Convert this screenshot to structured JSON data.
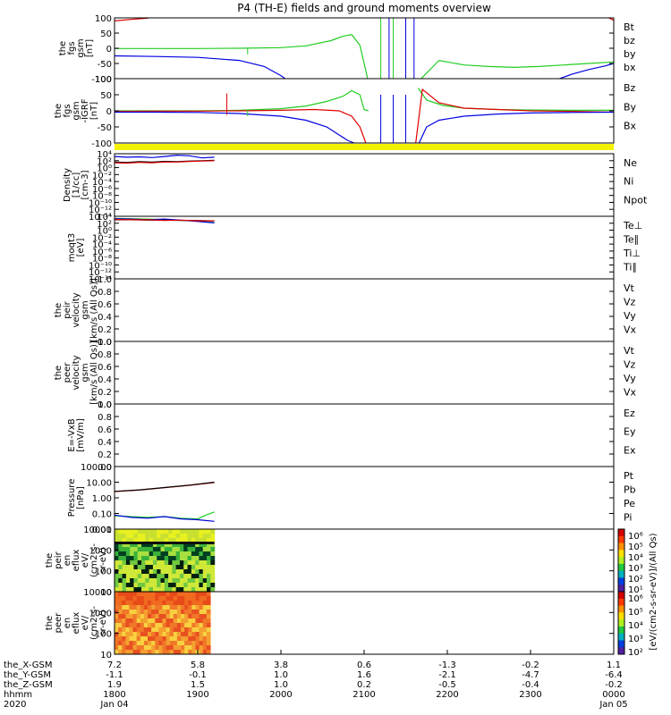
{
  "title": "P4 (TH-E) fields and ground moments overview",
  "colors": {
    "black": "#000000",
    "red": "#e00000",
    "green": "#22cc22",
    "blue": "#0000e0",
    "yellow": "#f2f200"
  },
  "chart_data": [
    {
      "type": "line",
      "id": "fgs-gsm",
      "ylabel": [
        "the",
        "fgs",
        "gsm",
        "[nT]"
      ],
      "ylim": [
        -100,
        100
      ],
      "yticks": [
        "100",
        "50",
        "0",
        "-50",
        "-100"
      ],
      "legend": [
        {
          "name": "Bt",
          "color": "black"
        },
        {
          "name": "bz",
          "color": "red"
        },
        {
          "name": "by",
          "color": "green"
        },
        {
          "name": "bx",
          "color": "blue"
        }
      ],
      "series": [
        {
          "name": "bz",
          "color": "red",
          "x": [
            18.0,
            18.2,
            18.4,
            18.55,
            23.8,
            23.95,
            24.0
          ],
          "y": [
            90,
            95,
            99,
            110,
            110,
            99,
            92
          ]
        },
        {
          "name": "by",
          "color": "green",
          "x": [
            18.0,
            18.5,
            19.0,
            19.5,
            20.0,
            20.3,
            20.6,
            20.75,
            20.85,
            20.95,
            21.05
          ],
          "y": [
            -1,
            -1,
            -1,
            0,
            2,
            8,
            25,
            40,
            45,
            10,
            -110
          ]
        },
        {
          "name": "by-2",
          "color": "green",
          "x": [
            21.65,
            21.9,
            22.2,
            22.5,
            22.8,
            23.1,
            23.4,
            23.7,
            24.0
          ],
          "y": [
            -110,
            -40,
            -55,
            -60,
            -63,
            -60,
            -55,
            -50,
            -45
          ]
        },
        {
          "name": "bx",
          "color": "blue",
          "x": [
            18.0,
            18.5,
            19.0,
            19.5,
            19.8,
            20.0,
            20.05
          ],
          "y": [
            -25,
            -27,
            -30,
            -40,
            -60,
            -90,
            -100
          ]
        },
        {
          "name": "bx-2",
          "color": "blue",
          "x": [
            23.35,
            23.5,
            23.7,
            23.9,
            24.0
          ],
          "y": [
            -100,
            -85,
            -70,
            -58,
            -50
          ]
        }
      ],
      "spikes": [
        {
          "color": "green",
          "x": 19.6,
          "y": [
            -20,
            2
          ]
        },
        {
          "color": "green",
          "x": 21.2,
          "y": [
            -100,
            100
          ]
        },
        {
          "color": "green",
          "x": 21.35,
          "y": [
            -100,
            100
          ]
        },
        {
          "color": "blue",
          "x": 21.3,
          "y": [
            -100,
            100
          ]
        },
        {
          "color": "blue",
          "x": 21.5,
          "y": [
            -100,
            100
          ]
        },
        {
          "color": "blue",
          "x": 21.6,
          "y": [
            -100,
            100
          ]
        }
      ]
    },
    {
      "type": "line",
      "id": "fgs-gsm-dip",
      "ylabel": [
        "the",
        "fgs",
        "gsm",
        "-IGRF",
        "[nT]"
      ],
      "ylim": [
        -120,
        120
      ],
      "yticks": [
        "100",
        "50",
        "0",
        "-50",
        "-100"
      ],
      "legend": [
        {
          "name": "Bz",
          "color": "red"
        },
        {
          "name": "By",
          "color": "green"
        },
        {
          "name": "Bx",
          "color": "blue"
        }
      ],
      "series": [
        {
          "name": "By",
          "color": "green",
          "x": [
            18.0,
            18.5,
            19.0,
            19.5,
            20.0,
            20.3,
            20.55,
            20.75,
            20.85,
            20.95,
            21.0,
            21.05
          ],
          "y": [
            0,
            0,
            0,
            2,
            8,
            18,
            35,
            55,
            75,
            60,
            5,
            0
          ]
        },
        {
          "name": "By-2",
          "color": "green",
          "x": [
            21.65,
            21.75,
            21.95,
            22.2,
            22.6,
            23.0,
            23.5,
            24.0
          ],
          "y": [
            85,
            40,
            20,
            10,
            5,
            3,
            2,
            2
          ]
        },
        {
          "name": "Bz",
          "color": "red",
          "x": [
            18.0,
            18.5,
            19.0,
            19.5,
            20.0,
            20.4,
            20.7,
            20.85,
            20.95,
            21.02
          ],
          "y": [
            -2,
            -1,
            -1,
            0,
            2,
            5,
            0,
            -20,
            -60,
            -120
          ]
        },
        {
          "name": "Bz-2",
          "color": "red",
          "x": [
            21.62,
            21.7,
            21.9,
            22.2,
            22.6,
            23.0,
            23.5,
            24.0
          ],
          "y": [
            -120,
            80,
            30,
            10,
            5,
            0,
            -2,
            -5
          ]
        },
        {
          "name": "Bx",
          "color": "blue",
          "x": [
            18.0,
            18.5,
            19.0,
            19.5,
            20.0,
            20.3,
            20.55,
            20.7,
            20.8,
            20.88
          ],
          "y": [
            -5,
            -5,
            -6,
            -10,
            -20,
            -35,
            -60,
            -90,
            -110,
            -120
          ]
        },
        {
          "name": "Bx-2",
          "color": "blue",
          "x": [
            21.66,
            21.75,
            21.9,
            22.2,
            22.6,
            23.0,
            23.5,
            24.0
          ],
          "y": [
            -120,
            -60,
            -35,
            -20,
            -12,
            -8,
            -6,
            -5
          ]
        }
      ],
      "spikes": [
        {
          "color": "red",
          "x": 19.35,
          "y": [
            -15,
            65
          ]
        },
        {
          "color": "green",
          "x": 19.6,
          "y": [
            -20,
            5
          ]
        },
        {
          "color": "blue",
          "x": 21.2,
          "y": [
            -120,
            60
          ]
        },
        {
          "color": "blue",
          "x": 21.35,
          "y": [
            -120,
            60
          ]
        },
        {
          "color": "blue",
          "x": 21.5,
          "y": [
            -120,
            60
          ]
        }
      ]
    },
    {
      "type": "line",
      "id": "density",
      "ylabel": [
        "Density",
        "[1/cc]",
        "[cm-3]"
      ],
      "yscale": "log",
      "ylim_exp": [
        -14,
        4
      ],
      "yticks": [
        "10⁴",
        "10²",
        "10⁰",
        "10⁻²",
        "10⁻⁴",
        "10⁻⁶",
        "10⁻⁸",
        "10⁻¹⁰",
        "10⁻¹²",
        "10⁻¹⁴"
      ],
      "legend": [
        {
          "name": "Ne",
          "color": "red"
        },
        {
          "name": "Ni",
          "color": "black"
        },
        {
          "name": "Npot",
          "color": "blue"
        }
      ],
      "series": [
        {
          "name": "Npot",
          "color": "blue",
          "x": [
            18.0,
            18.15,
            18.3,
            18.45,
            18.6,
            18.75,
            18.9,
            19.05,
            19.2
          ],
          "y_exp": [
            3.2,
            3.0,
            3.1,
            2.9,
            3.2,
            3.6,
            3.4,
            2.8,
            3.0
          ]
        },
        {
          "name": "Ni",
          "color": "black",
          "x": [
            18.0,
            18.15,
            18.3,
            18.45,
            18.6,
            18.75,
            18.9,
            19.05,
            19.2
          ],
          "y_exp": [
            1.6,
            1.5,
            1.7,
            1.6,
            1.8,
            1.7,
            1.9,
            2.0,
            2.1
          ]
        },
        {
          "name": "Ne",
          "color": "red",
          "x": [
            18.0,
            18.15,
            18.3,
            18.45,
            18.6,
            18.75,
            18.9,
            19.05,
            19.2
          ],
          "y_exp": [
            1.4,
            1.3,
            1.5,
            1.4,
            1.6,
            1.6,
            1.8,
            1.9,
            2.0
          ]
        }
      ]
    },
    {
      "type": "line",
      "id": "temperature",
      "ylabel": [
        "moqt3",
        "[eV]"
      ],
      "yscale": "log",
      "ylim_exp": [
        -14,
        4
      ],
      "yticks": [
        "10⁴",
        "10²",
        "10⁰",
        "10⁻²",
        "10⁻⁴",
        "10⁻⁶",
        "10⁻⁸",
        "10⁻¹⁰",
        "10⁻¹²",
        "10⁻¹⁴"
      ],
      "legend": [
        {
          "name": "Te⊥",
          "color": "red"
        },
        {
          "name": "Te∥",
          "color": "black"
        },
        {
          "name": "Ti⊥",
          "color": "blue"
        },
        {
          "name": "Ti∥",
          "color": "green"
        }
      ],
      "series": [
        {
          "name": "Ti∥",
          "color": "green",
          "x": [
            18.0,
            18.2,
            18.4,
            18.6,
            18.8,
            19.0,
            19.2
          ],
          "y_exp": [
            3.4,
            3.3,
            3.2,
            3.0,
            2.9,
            2.6,
            2.2
          ]
        },
        {
          "name": "Ti⊥",
          "color": "blue",
          "x": [
            18.0,
            18.2,
            18.4,
            18.6,
            18.8,
            19.0,
            19.2
          ],
          "y_exp": [
            3.3,
            3.2,
            3.0,
            3.2,
            2.9,
            2.5,
            2.1
          ]
        },
        {
          "name": "Te∥",
          "color": "black",
          "x": [
            18.0,
            18.2,
            18.4,
            18.6,
            18.8,
            19.0,
            19.2
          ],
          "y_exp": [
            3.0,
            3.0,
            2.9,
            2.9,
            2.8,
            2.8,
            2.7
          ]
        },
        {
          "name": "Te⊥",
          "color": "red",
          "x": [
            18.0,
            18.2,
            18.4,
            18.6,
            18.8,
            19.0,
            19.2
          ],
          "y_exp": [
            3.1,
            3.0,
            3.0,
            2.8,
            2.9,
            2.7,
            2.7
          ]
        }
      ]
    },
    {
      "type": "line",
      "id": "peir-velocity",
      "ylabel": [
        "the",
        "peir",
        "velocity",
        "gsm",
        "[km/s (All Qs)]"
      ],
      "ylim": [
        0,
        1
      ],
      "yticks": [
        "1.0",
        "0.8",
        "0.6",
        "0.4",
        "0.2",
        "0.0"
      ],
      "legend": [
        {
          "name": "Vt",
          "color": "black"
        },
        {
          "name": "Vz",
          "color": "red"
        },
        {
          "name": "Vy",
          "color": "green"
        },
        {
          "name": "Vx",
          "color": "blue"
        }
      ],
      "series": []
    },
    {
      "type": "line",
      "id": "peer-velocity",
      "ylabel": [
        "the",
        "peer",
        "velocity",
        "gsm",
        "[km/s (All Qs)]"
      ],
      "ylim": [
        0,
        1
      ],
      "yticks": [
        "1.0",
        "0.8",
        "0.6",
        "0.4",
        "0.2",
        "0.0"
      ],
      "legend": [
        {
          "name": "Vt",
          "color": "black"
        },
        {
          "name": "Vz",
          "color": "red"
        },
        {
          "name": "Vy",
          "color": "green"
        },
        {
          "name": "Vx",
          "color": "blue"
        }
      ],
      "series": []
    },
    {
      "type": "line",
      "id": "e-field",
      "ylabel": [
        "E=-VxB",
        "[mV/m]"
      ],
      "ylim": [
        0,
        1
      ],
      "yticks": [
        "1.0",
        "0.8",
        "0.6",
        "0.4",
        "0.2",
        "0.0"
      ],
      "legend": [
        {
          "name": "Ez",
          "color": "red"
        },
        {
          "name": "Ey",
          "color": "green"
        },
        {
          "name": "Ex",
          "color": "blue"
        }
      ],
      "series": []
    },
    {
      "type": "line",
      "id": "pressure",
      "ylabel": [
        "Pressure",
        "[nPa]"
      ],
      "yscale": "log",
      "ylim_exp": [
        -2,
        2
      ],
      "yticks": [
        "100.00",
        "10.00",
        "1.00",
        "0.10",
        "0.01"
      ],
      "legend": [
        {
          "name": "Pt",
          "color": "black"
        },
        {
          "name": "Pb",
          "color": "red"
        },
        {
          "name": "Pe",
          "color": "green"
        },
        {
          "name": "Pi",
          "color": "blue"
        }
      ],
      "series": [
        {
          "name": "Pb",
          "color": "red",
          "x": [
            18.0,
            18.3,
            18.6,
            18.9,
            19.2
          ],
          "y_exp": [
            0.4,
            0.5,
            0.65,
            0.8,
            0.98
          ]
        },
        {
          "name": "Pt",
          "color": "black",
          "x": [
            18.0,
            18.3,
            18.6,
            18.9,
            19.2
          ],
          "y_exp": [
            0.41,
            0.51,
            0.66,
            0.81,
            1.0
          ]
        },
        {
          "name": "Pe",
          "color": "green",
          "x": [
            18.0,
            18.2,
            18.4,
            18.6,
            18.8,
            19.0,
            19.1,
            19.2
          ],
          "y_exp": [
            -1.15,
            -1.2,
            -1.25,
            -1.2,
            -1.3,
            -1.35,
            -1.1,
            -0.9
          ]
        },
        {
          "name": "Pi",
          "color": "blue",
          "x": [
            18.0,
            18.2,
            18.4,
            18.6,
            18.8,
            19.0,
            19.2
          ],
          "y_exp": [
            -1.1,
            -1.25,
            -1.3,
            -1.2,
            -1.35,
            -1.4,
            -1.5
          ]
        }
      ]
    },
    {
      "type": "heatmap",
      "id": "peir-en-eflux",
      "ylabel": [
        "the",
        "peir",
        "en",
        "eflux",
        "eV/",
        "(cm2-s-",
        "sr-eV)"
      ],
      "yticks": [
        "10000",
        "1000",
        "100",
        "10"
      ],
      "data_x_range": [
        18.0,
        19.2
      ]
    },
    {
      "type": "heatmap",
      "id": "peer-en-eflux",
      "ylabel": [
        "the",
        "peer",
        "en",
        "eflux",
        "eV/",
        "(cm2-s-",
        "sr-eV)"
      ],
      "yticks": [
        "10000",
        "1000",
        "100",
        "10"
      ],
      "data_x_range": [
        18.0,
        19.15
      ]
    }
  ],
  "colorbars": [
    {
      "label": "[eV/(cm2-s-sr-eV)]/(All Qs)",
      "ticks": [
        "10⁶",
        "10⁵",
        "10⁴",
        "10³",
        "10²",
        "10¹"
      ]
    },
    {
      "label": "[eV/(cm2-s-sr-eV)]/(All Qs)",
      "ticks": [
        "10⁶",
        "10⁵",
        "10⁴",
        "10³",
        "10²"
      ]
    }
  ],
  "x_axis": {
    "range": [
      18.0,
      24.0
    ],
    "row_labels": [
      "the_X-GSM",
      "the_Y-GSM",
      "the_Z-GSM",
      "hhmm",
      "2020"
    ],
    "ticks": [
      {
        "x": 18.0,
        "rows": [
          "7.2",
          "-1.1",
          "1.9",
          "1800",
          "Jan 04"
        ]
      },
      {
        "x": 19.0,
        "rows": [
          "5.8",
          "-0.1",
          "1.5",
          "1900",
          ""
        ]
      },
      {
        "x": 20.0,
        "rows": [
          "3.8",
          "1.0",
          "1.0",
          "2000",
          ""
        ]
      },
      {
        "x": 21.0,
        "rows": [
          "0.6",
          "1.6",
          "0.2",
          "2100",
          ""
        ]
      },
      {
        "x": 22.0,
        "rows": [
          "-1.3",
          "-2.1",
          "-0.5",
          "2200",
          ""
        ]
      },
      {
        "x": 23.0,
        "rows": [
          "-0.2",
          "-4.7",
          "-0.4",
          "2300",
          ""
        ]
      },
      {
        "x": 24.0,
        "rows": [
          "1.1",
          "-6.4",
          "-0.2",
          "0000",
          "Jan 05"
        ]
      }
    ]
  }
}
